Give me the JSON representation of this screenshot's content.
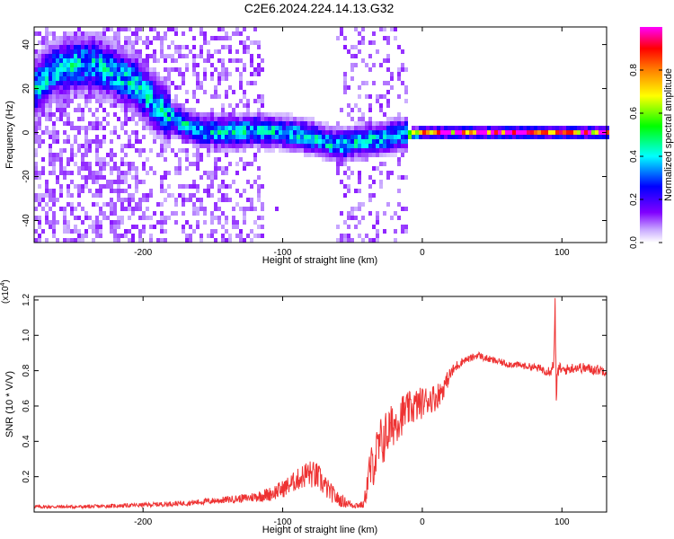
{
  "title": "C2E6.2024.224.14.13.G32",
  "colors": {
    "snr_line": "#ee3333",
    "background": "#ffffff",
    "axis": "#000000"
  },
  "chart_data": [
    {
      "type": "heatmap",
      "xlabel": "Height of straight line (km)",
      "ylabel": "Frequency (Hz)",
      "xlim": [
        -278,
        132
      ],
      "ylim": [
        -50,
        48
      ],
      "xticks": [
        -200,
        -100,
        0,
        100
      ],
      "xtick_labels": [
        "-200",
        "-100",
        "0",
        "100"
      ],
      "yticks": [
        -40,
        -20,
        0,
        20,
        40
      ],
      "ytick_labels": [
        "-40",
        "-20",
        "0",
        "20",
        "40"
      ],
      "colorbar": {
        "label": "Normalized spectral amplitude",
        "range": [
          0,
          1
        ],
        "ticks": [
          0.0,
          0.2,
          0.4,
          0.6,
          0.8
        ],
        "tick_labels": [
          "0.0",
          "0.2",
          "0.4",
          "0.6",
          "0.8"
        ],
        "colormap": [
          "#ffffff",
          "#8000ff",
          "#0000ff",
          "#00ffff",
          "#00ff00",
          "#ffff00",
          "#ff8000",
          "#ff0000",
          "#ff00ff"
        ]
      },
      "ridge": {
        "x": [
          -278,
          -265,
          -250,
          -235,
          -220,
          -205,
          -190,
          -175,
          -160,
          -140,
          -120,
          -100,
          -80,
          -60,
          -45,
          -30,
          -15,
          0,
          132
        ],
        "y": [
          20,
          28,
          31,
          31,
          27,
          22,
          12,
          5,
          1,
          0,
          1,
          0,
          -2,
          -6,
          -4,
          -3,
          -1,
          0,
          0
        ]
      }
    },
    {
      "type": "line",
      "xlabel": "Height of straight line (km)",
      "ylabel": "SNR (10 * V/V)",
      "y_multiplier_label": "(x10",
      "y_multiplier_exp": "4",
      "xlim": [
        -278,
        132
      ],
      "ylim": [
        0,
        1.22
      ],
      "xticks": [
        -200,
        -100,
        0,
        100
      ],
      "xtick_labels": [
        "-200",
        "-100",
        "0",
        "100"
      ],
      "yticks": [
        0.2,
        0.4,
        0.6,
        0.8,
        1.0,
        1.2
      ],
      "ytick_labels": [
        "0.2",
        "0.4",
        "0.6",
        "0.8",
        "1.0",
        "1.2"
      ],
      "series": [
        {
          "x": [
            -278,
            -240,
            -200,
            -170,
            -140,
            -125,
            -110,
            -100,
            -90,
            -82,
            -75,
            -68,
            -60,
            -50,
            -42,
            -38,
            -34,
            -30,
            -25,
            -20,
            -15,
            -10,
            -5,
            0,
            5,
            10,
            15,
            20,
            25,
            30,
            35,
            40,
            45,
            50,
            60,
            70,
            80,
            90,
            94,
            95,
            96,
            97,
            98,
            100,
            110,
            120,
            132
          ],
          "y": [
            0.03,
            0.03,
            0.04,
            0.05,
            0.07,
            0.08,
            0.1,
            0.13,
            0.18,
            0.22,
            0.2,
            0.13,
            0.07,
            0.04,
            0.04,
            0.22,
            0.3,
            0.38,
            0.45,
            0.5,
            0.55,
            0.58,
            0.6,
            0.62,
            0.64,
            0.65,
            0.7,
            0.78,
            0.83,
            0.86,
            0.87,
            0.89,
            0.87,
            0.86,
            0.84,
            0.83,
            0.82,
            0.8,
            0.82,
            1.2,
            0.6,
            0.8,
            0.82,
            0.8,
            0.82,
            0.81,
            0.8
          ],
          "noise": [
            0.01,
            0.01,
            0.012,
            0.015,
            0.02,
            0.025,
            0.04,
            0.05,
            0.06,
            0.08,
            0.08,
            0.06,
            0.04,
            0.02,
            0.02,
            0.12,
            0.14,
            0.16,
            0.14,
            0.12,
            0.12,
            0.1,
            0.1,
            0.09,
            0.08,
            0.08,
            0.06,
            0.04,
            0.03,
            0.02,
            0.02,
            0.02,
            0.02,
            0.02,
            0.02,
            0.02,
            0.02,
            0.03,
            0.05,
            0.1,
            0.1,
            0.05,
            0.03,
            0.03,
            0.03,
            0.03,
            0.03
          ]
        }
      ]
    }
  ]
}
